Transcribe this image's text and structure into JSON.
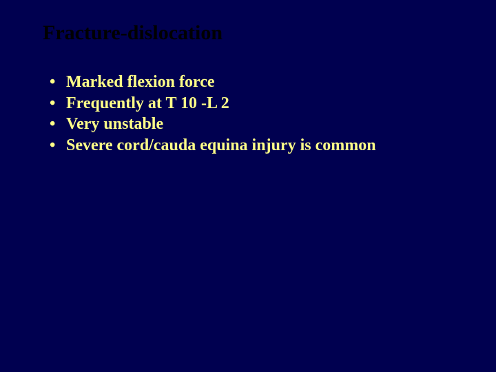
{
  "slide": {
    "background_color": "#000050",
    "title": {
      "text": "Fracture-dislocation",
      "color": "#000000",
      "font_size_pt": 30,
      "font_weight": "bold"
    },
    "bullet_style": {
      "glyph": "•",
      "text_color": "#ffff88",
      "font_size_pt": 24,
      "font_weight": "bold"
    },
    "bullets": [
      {
        "text": "Marked flexion force"
      },
      {
        "text": "Frequently at T 10 -L 2"
      },
      {
        "text": "Very unstable"
      },
      {
        "text": "Severe cord/cauda equina injury is common"
      }
    ]
  }
}
